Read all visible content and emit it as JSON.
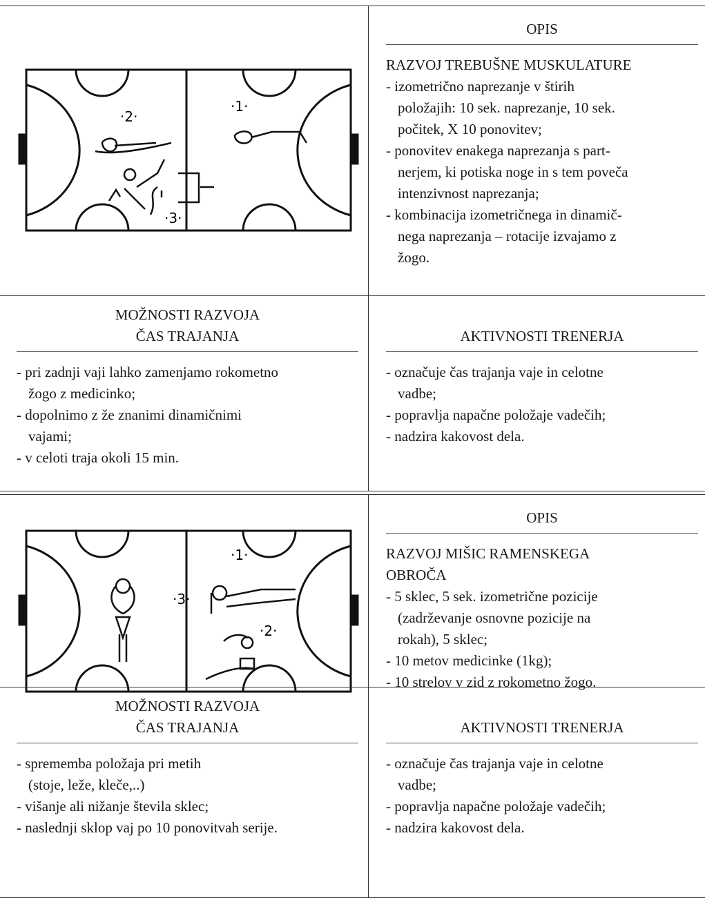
{
  "exercises": [
    {
      "diagram": {
        "labels": [
          "·2·",
          "·1·",
          "·3·"
        ]
      },
      "description": {
        "heading": "OPIS",
        "title": [
          "RAZVOJ TREBUŠNE MUSKULATURE"
        ],
        "items": [
          [
            "- izometrično naprezanje v štirih",
            "položajih: 10 sek. naprezanje, 10 sek.",
            "počitek, X 10 ponovitev;"
          ],
          [
            "- ponovitev enakega naprezanja s part-",
            "nerjem, ki potiska noge in s tem poveča",
            "intenzivnost naprezanja;"
          ],
          [
            "- kombinacija izometričnega in dinamič-",
            "nega naprezanja – rotacije izvajamo z",
            "žogo."
          ]
        ]
      },
      "options": {
        "heading": [
          "MOŽNOSTI RAZVOJA",
          "ČAS TRAJANJA"
        ],
        "items": [
          [
            "- pri zadnji vaji lahko zamenjamo rokometno",
            "žogo z medicinko;"
          ],
          [
            "- dopolnimo z že znanimi dinamičnimi",
            "vajami;"
          ],
          [
            "- v celoti traja okoli 15 min."
          ]
        ]
      },
      "coach": {
        "heading": "AKTIVNOSTI TRENERJA",
        "items": [
          [
            "- označuje čas trajanja vaje in celotne",
            "vadbe;"
          ],
          [
            "- popravlja napačne položaje vadečih;"
          ],
          [
            "- nadzira kakovost dela."
          ]
        ]
      }
    },
    {
      "diagram": {
        "labels": [
          "·1·",
          "·3·",
          "·2·"
        ]
      },
      "description": {
        "heading": "OPIS",
        "title": [
          "RAZVOJ MIŠIC RAMENSKEGA",
          "OBROČA"
        ],
        "items": [
          [
            "- 5 sklec, 5 sek. izometrične pozicije",
            "(zadrževanje osnovne pozicije na",
            "rokah), 5 sklec;"
          ],
          [
            "- 10 metov medicinke (1kg);"
          ],
          [
            "- 10 strelov v zid z rokometno žogo."
          ]
        ]
      },
      "options": {
        "heading": [
          "MOŽNOSTI RAZVOJA",
          "ČAS TRAJANJA"
        ],
        "items": [
          [
            "- sprememba položaja pri metih",
            "(stoje, leže, kleče,..)"
          ],
          [
            "- višanje ali nižanje števila sklec;"
          ],
          [
            "- naslednji sklop vaj po 10 ponovitvah serije."
          ]
        ]
      },
      "coach": {
        "heading": "AKTIVNOSTI TRENERJA",
        "items": [
          [
            "- označuje čas trajanja vaje in celotne",
            "vadbe;"
          ],
          [
            "- popravlja napačne položaje vadečih;"
          ],
          [
            "- nadzira kakovost dela."
          ]
        ]
      }
    }
  ]
}
